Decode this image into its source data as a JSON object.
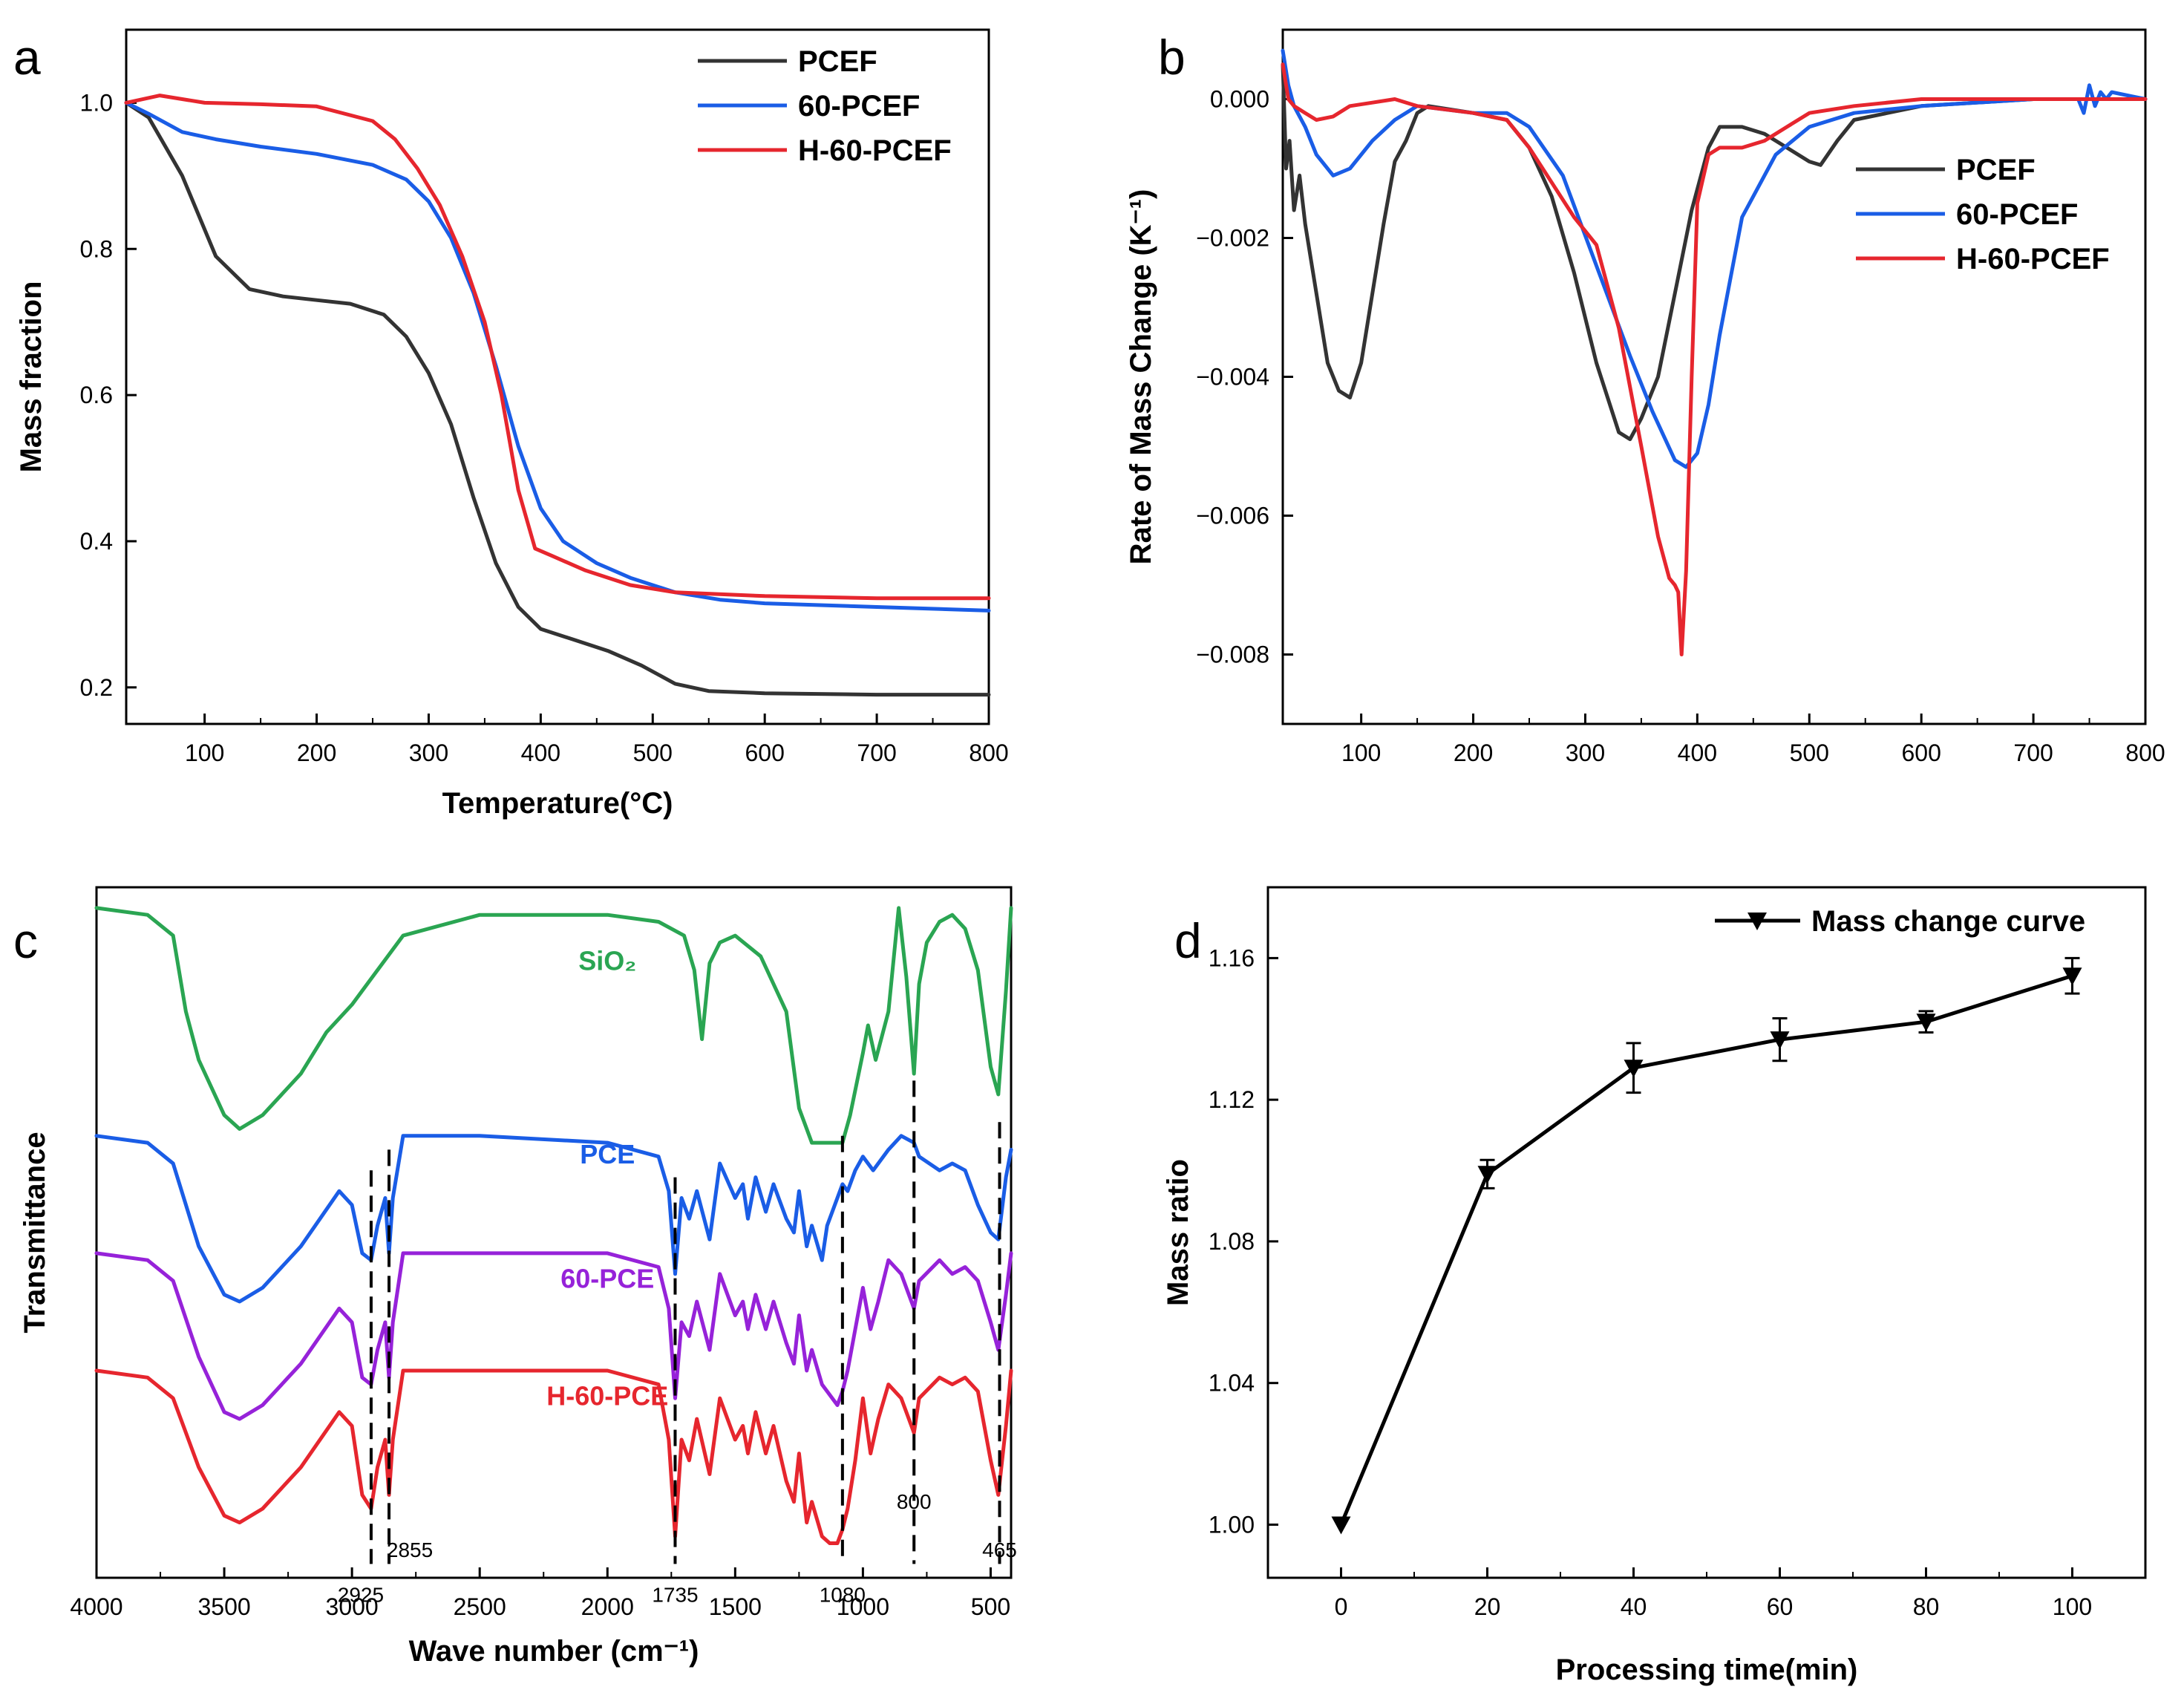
{
  "chart_data": [
    {
      "panel": "a",
      "type": "line",
      "xlabel": "Temperature(°C)",
      "ylabel": "Mass fraction",
      "xlim": [
        30,
        800
      ],
      "ylim": [
        0.15,
        1.1
      ],
      "xticks": [
        100,
        200,
        300,
        400,
        500,
        600,
        700,
        800
      ],
      "yticks": [
        0.2,
        0.4,
        0.6,
        0.8,
        1.0
      ],
      "tick_decimals": 1,
      "legend_position": "top-right",
      "series": [
        {
          "name": "PCEF",
          "color": "#333333",
          "x": [
            30,
            50,
            80,
            110,
            140,
            170,
            200,
            230,
            260,
            280,
            300,
            320,
            340,
            360,
            380,
            400,
            430,
            460,
            490,
            520,
            550,
            600,
            700,
            800
          ],
          "y": [
            1.0,
            0.98,
            0.9,
            0.79,
            0.745,
            0.735,
            0.73,
            0.725,
            0.71,
            0.68,
            0.63,
            0.56,
            0.46,
            0.37,
            0.31,
            0.28,
            0.265,
            0.25,
            0.23,
            0.205,
            0.195,
            0.192,
            0.19,
            0.19
          ]
        },
        {
          "name": "60-PCEF",
          "color": "#1a5de6",
          "x": [
            30,
            50,
            80,
            110,
            150,
            200,
            250,
            280,
            300,
            320,
            340,
            360,
            380,
            400,
            420,
            450,
            480,
            520,
            560,
            600,
            700,
            800
          ],
          "y": [
            1.0,
            0.985,
            0.96,
            0.95,
            0.94,
            0.93,
            0.915,
            0.895,
            0.865,
            0.815,
            0.74,
            0.64,
            0.53,
            0.445,
            0.4,
            0.37,
            0.35,
            0.33,
            0.32,
            0.315,
            0.31,
            0.305
          ]
        },
        {
          "name": "H-60-PCEF",
          "color": "#e6262e",
          "x": [
            30,
            60,
            100,
            150,
            200,
            250,
            270,
            290,
            310,
            330,
            350,
            365,
            380,
            395,
            410,
            440,
            480,
            520,
            600,
            700,
            800
          ],
          "y": [
            1.0,
            1.01,
            1.0,
            0.998,
            0.995,
            0.975,
            0.95,
            0.91,
            0.86,
            0.79,
            0.7,
            0.6,
            0.47,
            0.39,
            0.38,
            0.36,
            0.34,
            0.33,
            0.325,
            0.322,
            0.322
          ]
        }
      ]
    },
    {
      "panel": "b",
      "type": "line",
      "xlabel": "",
      "ylabel": "Rate of Mass Change (K⁻¹)",
      "xlim": [
        30,
        800
      ],
      "ylim": [
        -0.009,
        0.001
      ],
      "xticks": [
        100,
        200,
        300,
        400,
        500,
        600,
        700,
        800
      ],
      "yticks": [
        0.0,
        -0.002,
        -0.004,
        -0.006,
        -0.008
      ],
      "tick_decimals": 3,
      "legend_position": "right",
      "series": [
        {
          "name": "PCEF",
          "color": "#333333",
          "x": [
            30,
            33,
            36,
            40,
            45,
            50,
            60,
            70,
            80,
            90,
            100,
            110,
            120,
            130,
            140,
            150,
            160,
            200,
            230,
            250,
            270,
            290,
            310,
            330,
            340,
            350,
            365,
            380,
            395,
            410,
            420,
            440,
            460,
            480,
            500,
            510,
            525,
            540,
            600,
            700,
            800
          ],
          "y": [
            0.0005,
            -0.001,
            -0.0006,
            -0.0016,
            -0.0011,
            -0.0018,
            -0.0028,
            -0.0038,
            -0.0042,
            -0.0043,
            -0.0038,
            -0.0028,
            -0.0018,
            -0.0009,
            -0.0006,
            -0.0002,
            -0.0001,
            -0.0002,
            -0.0003,
            -0.0007,
            -0.0014,
            -0.0025,
            -0.0038,
            -0.0048,
            -0.0049,
            -0.0046,
            -0.004,
            -0.0028,
            -0.0016,
            -0.0007,
            -0.0004,
            -0.0004,
            -0.0005,
            -0.0007,
            -0.0009,
            -0.00095,
            -0.0006,
            -0.0003,
            -0.0001,
            0.0,
            0.0
          ]
        },
        {
          "name": "60-PCEF",
          "color": "#1a5de6",
          "x": [
            30,
            35,
            40,
            50,
            60,
            75,
            90,
            110,
            130,
            150,
            200,
            230,
            250,
            280,
            310,
            340,
            360,
            380,
            390,
            400,
            410,
            420,
            440,
            470,
            500,
            540,
            600,
            700,
            740,
            745,
            750,
            755,
            760,
            765,
            770,
            800
          ],
          "y": [
            0.0007,
            0.0002,
            -0.0001,
            -0.0004,
            -0.0008,
            -0.0011,
            -0.001,
            -0.0006,
            -0.0003,
            -0.0001,
            -0.0002,
            -0.0002,
            -0.0004,
            -0.0011,
            -0.0024,
            -0.0037,
            -0.0045,
            -0.0052,
            -0.0053,
            -0.0051,
            -0.0044,
            -0.0034,
            -0.0017,
            -0.0008,
            -0.0004,
            -0.0002,
            -0.0001,
            0.0,
            0.0,
            -0.0002,
            0.0002,
            -0.0001,
            0.0001,
            0.0,
            0.0001,
            0.0
          ]
        },
        {
          "name": "H-60-PCEF",
          "color": "#e6262e",
          "x": [
            30,
            35,
            40,
            50,
            60,
            75,
            90,
            110,
            130,
            150,
            200,
            230,
            250,
            270,
            290,
            310,
            330,
            350,
            365,
            375,
            380,
            383,
            386,
            390,
            395,
            400,
            410,
            420,
            440,
            460,
            480,
            500,
            540,
            600,
            700,
            800
          ],
          "y": [
            0.0005,
            0.0,
            -0.0001,
            -0.0002,
            -0.0003,
            -0.00025,
            -0.0001,
            -5e-05,
            0.0,
            -0.0001,
            -0.0002,
            -0.0003,
            -0.0007,
            -0.0012,
            -0.0017,
            -0.0021,
            -0.0033,
            -0.005,
            -0.0063,
            -0.0069,
            -0.007,
            -0.0071,
            -0.008,
            -0.0068,
            -0.004,
            -0.0015,
            -0.0008,
            -0.0007,
            -0.0007,
            -0.0006,
            -0.0004,
            -0.0002,
            -0.0001,
            0.0,
            0.0,
            0.0
          ]
        }
      ]
    },
    {
      "panel": "c",
      "type": "line",
      "xlabel": "Wave number (cm⁻¹)",
      "ylabel": "Transmittance",
      "xlim": [
        4000,
        420
      ],
      "ylim": [
        0,
        100
      ],
      "xticks": [
        4000,
        3500,
        3000,
        2500,
        2000,
        1500,
        1000,
        500
      ],
      "yticks": [],
      "tick_decimals": 0,
      "series": [
        {
          "name": "SiO₂",
          "color": "#2aa552",
          "x": [
            4000,
            3800,
            3700,
            3650,
            3600,
            3500,
            3440,
            3350,
            3200,
            3100,
            3000,
            2900,
            2800,
            2500,
            2000,
            1800,
            1700,
            1660,
            1630,
            1600,
            1560,
            1500,
            1400,
            1300,
            1250,
            1200,
            1150,
            1100,
            1080,
            1050,
            1000,
            980,
            950,
            900,
            860,
            830,
            800,
            780,
            750,
            700,
            650,
            600,
            550,
            500,
            470,
            440,
            420
          ],
          "y": [
            97,
            96,
            93,
            82,
            75,
            67,
            65,
            67,
            73,
            79,
            83,
            88,
            93,
            96,
            96,
            95,
            93,
            88,
            78,
            89,
            92,
            93,
            90,
            82,
            68,
            63,
            63,
            63,
            63,
            67,
            76,
            80,
            75,
            82,
            97,
            87,
            73,
            86,
            92,
            95,
            96,
            94,
            88,
            74,
            70,
            85,
            97
          ]
        },
        {
          "name": "PCE",
          "color": "#1a5de6",
          "x": [
            4000,
            3800,
            3700,
            3600,
            3500,
            3440,
            3350,
            3200,
            3050,
            3000,
            2960,
            2925,
            2900,
            2870,
            2855,
            2840,
            2800,
            2500,
            2000,
            1800,
            1760,
            1735,
            1710,
            1680,
            1650,
            1600,
            1560,
            1500,
            1470,
            1450,
            1420,
            1380,
            1350,
            1300,
            1270,
            1250,
            1220,
            1200,
            1160,
            1140,
            1100,
            1080,
            1060,
            1030,
            1000,
            960,
            900,
            850,
            800,
            780,
            700,
            650,
            600,
            550,
            500,
            470,
            440,
            420
          ],
          "y": [
            64,
            63,
            60,
            48,
            41,
            40,
            42,
            48,
            56,
            54,
            47,
            46,
            51,
            55,
            47,
            55,
            64,
            64,
            63,
            61,
            56,
            44,
            55,
            52,
            56,
            49,
            60,
            55,
            57,
            52,
            58,
            53,
            57,
            52,
            50,
            56,
            48,
            51,
            46,
            51,
            55,
            57,
            56,
            59,
            61,
            59,
            62,
            64,
            63,
            61,
            59,
            60,
            59,
            54,
            50,
            49,
            58,
            62
          ]
        },
        {
          "name": "60-PCE",
          "color": "#9622d9",
          "x": [
            4000,
            3800,
            3700,
            3600,
            3500,
            3440,
            3350,
            3200,
            3050,
            3000,
            2960,
            2925,
            2900,
            2870,
            2855,
            2840,
            2800,
            2500,
            2000,
            1800,
            1760,
            1735,
            1710,
            1680,
            1650,
            1600,
            1560,
            1500,
            1470,
            1450,
            1420,
            1380,
            1350,
            1300,
            1270,
            1250,
            1220,
            1200,
            1160,
            1140,
            1100,
            1080,
            1060,
            1030,
            1000,
            970,
            940,
            900,
            850,
            800,
            780,
            700,
            650,
            600,
            550,
            500,
            470,
            440,
            420
          ],
          "y": [
            47,
            46,
            43,
            32,
            24,
            23,
            25,
            31,
            39,
            37,
            29,
            28,
            33,
            37,
            29,
            37,
            47,
            47,
            47,
            45,
            39,
            26,
            37,
            35,
            40,
            33,
            44,
            38,
            40,
            36,
            41,
            36,
            40,
            34,
            31,
            38,
            30,
            33,
            28,
            27,
            25,
            27,
            30,
            36,
            42,
            36,
            40,
            46,
            44,
            39,
            43,
            46,
            44,
            45,
            43,
            37,
            33,
            41,
            47
          ]
        },
        {
          "name": "H-60-PCE",
          "color": "#e6262e",
          "x": [
            4000,
            3800,
            3700,
            3600,
            3500,
            3440,
            3350,
            3200,
            3050,
            3000,
            2960,
            2925,
            2900,
            2870,
            2855,
            2840,
            2800,
            2500,
            2000,
            1800,
            1760,
            1735,
            1710,
            1680,
            1650,
            1600,
            1560,
            1500,
            1470,
            1450,
            1420,
            1380,
            1350,
            1300,
            1270,
            1250,
            1220,
            1200,
            1160,
            1130,
            1100,
            1080,
            1060,
            1030,
            1000,
            970,
            940,
            900,
            850,
            800,
            780,
            700,
            650,
            600,
            550,
            500,
            470,
            440,
            420
          ],
          "y": [
            30,
            29,
            26,
            16,
            9,
            8,
            10,
            16,
            24,
            22,
            12,
            10,
            16,
            20,
            12,
            20,
            30,
            30,
            30,
            28,
            20,
            6,
            20,
            17,
            23,
            15,
            26,
            20,
            22,
            18,
            24,
            18,
            22,
            14,
            11,
            18,
            8,
            11,
            6,
            5,
            5,
            7,
            10,
            17,
            26,
            18,
            23,
            28,
            26,
            21,
            26,
            29,
            28,
            29,
            27,
            17,
            12,
            22,
            30
          ]
        }
      ],
      "curve_labels": [
        "SiO₂",
        "PCE",
        "60-PCE",
        "H-60-PCE"
      ],
      "annotations": [
        {
          "label": "2925",
          "x": 2925
        },
        {
          "label": "2855",
          "x": 2855
        },
        {
          "label": "1735",
          "x": 1735
        },
        {
          "label": "1080",
          "x": 1080
        },
        {
          "label": "800",
          "x": 800
        },
        {
          "label": "465",
          "x": 465
        }
      ]
    },
    {
      "panel": "d",
      "type": "line",
      "xlabel": "Processing time(min)",
      "ylabel": "Mass ratio",
      "xlim": [
        -10,
        110
      ],
      "ylim": [
        0.985,
        1.18
      ],
      "xticks": [
        0,
        20,
        40,
        60,
        80,
        100
      ],
      "yticks": [
        1.0,
        1.04,
        1.08,
        1.12,
        1.16
      ],
      "tick_decimals": 2,
      "legend_position": "top-right",
      "series": [
        {
          "name": "Mass change curve",
          "color": "#000000",
          "x": [
            0,
            20,
            40,
            60,
            80,
            100
          ],
          "y": [
            1.0,
            1.099,
            1.129,
            1.137,
            1.142,
            1.155
          ],
          "err": [
            0.0,
            0.004,
            0.007,
            0.006,
            0.003,
            0.005
          ],
          "marker": "triangle-down"
        }
      ]
    }
  ],
  "panel_labels": [
    "a",
    "b",
    "c",
    "d"
  ]
}
